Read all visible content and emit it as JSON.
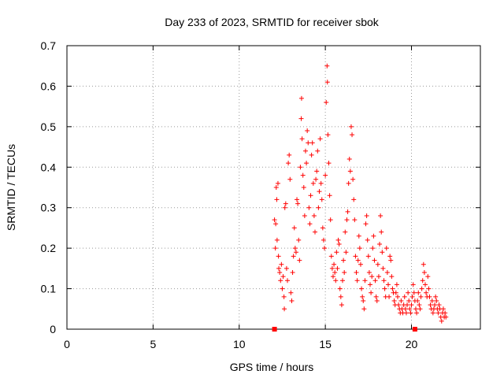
{
  "chart_data": {
    "type": "scatter",
    "title": "Day 233 of 2023, SRMTID for receiver sbok",
    "xlabel": "GPS time / hours",
    "ylabel": "SRMTID / TECUs",
    "xlim": [
      0,
      24
    ],
    "ylim": [
      0,
      0.7
    ],
    "xticks": [
      "0",
      "5",
      "10",
      "15",
      "20"
    ],
    "yticks": [
      "0",
      "0.1",
      "0.2",
      "0.3",
      "0.4",
      "0.5",
      "0.6",
      "0.7"
    ],
    "grid": true,
    "marker": "plus",
    "color": "#ff0000",
    "series": [
      {
        "name": "SRMTID",
        "points": [
          [
            12.05,
            0.27
          ],
          [
            12.1,
            0.2
          ],
          [
            12.12,
            0.26
          ],
          [
            12.15,
            0.35
          ],
          [
            12.18,
            0.32
          ],
          [
            12.2,
            0.22
          ],
          [
            12.25,
            0.36
          ],
          [
            12.28,
            0.18
          ],
          [
            12.3,
            0.15
          ],
          [
            12.35,
            0.14
          ],
          [
            12.4,
            0.12
          ],
          [
            12.45,
            0.16
          ],
          [
            12.5,
            0.1
          ],
          [
            12.55,
            0.13
          ],
          [
            12.6,
            0.08
          ],
          [
            12.62,
            0.05
          ],
          [
            12.65,
            0.3
          ],
          [
            12.7,
            0.31
          ],
          [
            12.75,
            0.15
          ],
          [
            12.8,
            0.12
          ],
          [
            12.85,
            0.41
          ],
          [
            12.9,
            0.43
          ],
          [
            12.95,
            0.37
          ],
          [
            13.0,
            0.09
          ],
          [
            13.05,
            0.07
          ],
          [
            13.1,
            0.14
          ],
          [
            13.15,
            0.18
          ],
          [
            13.2,
            0.25
          ],
          [
            13.25,
            0.2
          ],
          [
            13.3,
            0.19
          ],
          [
            13.35,
            0.32
          ],
          [
            13.4,
            0.31
          ],
          [
            13.45,
            0.22
          ],
          [
            13.5,
            0.17
          ],
          [
            13.55,
            0.4
          ],
          [
            13.6,
            0.52
          ],
          [
            13.62,
            0.57
          ],
          [
            13.65,
            0.47
          ],
          [
            13.7,
            0.38
          ],
          [
            13.75,
            0.35
          ],
          [
            13.8,
            0.28
          ],
          [
            13.85,
            0.44
          ],
          [
            13.9,
            0.41
          ],
          [
            13.95,
            0.49
          ],
          [
            14.0,
            0.46
          ],
          [
            14.05,
            0.3
          ],
          [
            14.1,
            0.26
          ],
          [
            14.15,
            0.33
          ],
          [
            14.2,
            0.43
          ],
          [
            14.25,
            0.46
          ],
          [
            14.3,
            0.36
          ],
          [
            14.35,
            0.28
          ],
          [
            14.4,
            0.24
          ],
          [
            14.45,
            0.37
          ],
          [
            14.5,
            0.39
          ],
          [
            14.55,
            0.44
          ],
          [
            14.6,
            0.3
          ],
          [
            14.65,
            0.34
          ],
          [
            14.7,
            0.47
          ],
          [
            14.75,
            0.36
          ],
          [
            14.8,
            0.32
          ],
          [
            14.85,
            0.25
          ],
          [
            14.9,
            0.22
          ],
          [
            14.95,
            0.2
          ],
          [
            15.0,
            0.38
          ],
          [
            15.05,
            0.56
          ],
          [
            15.1,
            0.65
          ],
          [
            15.12,
            0.61
          ],
          [
            15.15,
            0.48
          ],
          [
            15.2,
            0.41
          ],
          [
            15.25,
            0.33
          ],
          [
            15.3,
            0.27
          ],
          [
            15.35,
            0.18
          ],
          [
            15.4,
            0.15
          ],
          [
            15.45,
            0.13
          ],
          [
            15.5,
            0.16
          ],
          [
            15.55,
            0.14
          ],
          [
            15.6,
            0.12
          ],
          [
            15.65,
            0.19
          ],
          [
            15.7,
            0.15
          ],
          [
            15.75,
            0.22
          ],
          [
            15.8,
            0.21
          ],
          [
            15.85,
            0.1
          ],
          [
            15.9,
            0.08
          ],
          [
            15.95,
            0.06
          ],
          [
            16.0,
            0.12
          ],
          [
            16.05,
            0.17
          ],
          [
            16.1,
            0.14
          ],
          [
            16.15,
            0.24
          ],
          [
            16.2,
            0.19
          ],
          [
            16.25,
            0.27
          ],
          [
            16.3,
            0.29
          ],
          [
            16.35,
            0.36
          ],
          [
            16.4,
            0.42
          ],
          [
            16.45,
            0.39
          ],
          [
            16.5,
            0.5
          ],
          [
            16.55,
            0.48
          ],
          [
            16.6,
            0.37
          ],
          [
            16.65,
            0.32
          ],
          [
            16.7,
            0.27
          ],
          [
            16.75,
            0.18
          ],
          [
            16.8,
            0.14
          ],
          [
            16.85,
            0.12
          ],
          [
            16.9,
            0.17
          ],
          [
            16.95,
            0.23
          ],
          [
            17.0,
            0.2
          ],
          [
            17.05,
            0.16
          ],
          [
            17.1,
            0.1
          ],
          [
            17.15,
            0.08
          ],
          [
            17.2,
            0.07
          ],
          [
            17.25,
            0.05
          ],
          [
            17.3,
            0.12
          ],
          [
            17.35,
            0.26
          ],
          [
            17.4,
            0.28
          ],
          [
            17.45,
            0.22
          ],
          [
            17.5,
            0.18
          ],
          [
            17.55,
            0.14
          ],
          [
            17.6,
            0.11
          ],
          [
            17.65,
            0.09
          ],
          [
            17.7,
            0.13
          ],
          [
            17.75,
            0.2
          ],
          [
            17.8,
            0.23
          ],
          [
            17.85,
            0.17
          ],
          [
            17.9,
            0.12
          ],
          [
            17.95,
            0.08
          ],
          [
            18.0,
            0.07
          ],
          [
            18.05,
            0.16
          ],
          [
            18.1,
            0.13
          ],
          [
            18.15,
            0.21
          ],
          [
            18.2,
            0.28
          ],
          [
            18.25,
            0.24
          ],
          [
            18.3,
            0.19
          ],
          [
            18.35,
            0.15
          ],
          [
            18.4,
            0.12
          ],
          [
            18.45,
            0.1
          ],
          [
            18.5,
            0.08
          ],
          [
            18.55,
            0.2
          ],
          [
            18.6,
            0.14
          ],
          [
            18.65,
            0.11
          ],
          [
            18.7,
            0.08
          ],
          [
            18.75,
            0.18
          ],
          [
            18.8,
            0.17
          ],
          [
            18.85,
            0.13
          ],
          [
            18.9,
            0.1
          ],
          [
            18.95,
            0.09
          ],
          [
            19.0,
            0.07
          ],
          [
            19.05,
            0.06
          ],
          [
            19.1,
            0.09
          ],
          [
            19.15,
            0.11
          ],
          [
            19.2,
            0.08
          ],
          [
            19.25,
            0.06
          ],
          [
            19.3,
            0.05
          ],
          [
            19.35,
            0.04
          ],
          [
            19.4,
            0.07
          ],
          [
            19.45,
            0.05
          ],
          [
            19.5,
            0.04
          ],
          [
            19.55,
            0.06
          ],
          [
            19.6,
            0.08
          ],
          [
            19.65,
            0.05
          ],
          [
            19.7,
            0.04
          ],
          [
            19.75,
            0.06
          ],
          [
            19.8,
            0.09
          ],
          [
            19.85,
            0.07
          ],
          [
            19.9,
            0.05
          ],
          [
            19.95,
            0.04
          ],
          [
            20.0,
            0.06
          ],
          [
            20.05,
            0.08
          ],
          [
            20.1,
            0.11
          ],
          [
            20.15,
            0.09
          ],
          [
            20.2,
            0.07
          ],
          [
            20.25,
            0.05
          ],
          [
            20.3,
            0.04
          ],
          [
            20.35,
            0.07
          ],
          [
            20.4,
            0.09
          ],
          [
            20.45,
            0.06
          ],
          [
            20.5,
            0.05
          ],
          [
            20.55,
            0.08
          ],
          [
            20.6,
            0.1
          ],
          [
            20.65,
            0.12
          ],
          [
            20.7,
            0.16
          ],
          [
            20.75,
            0.14
          ],
          [
            20.8,
            0.11
          ],
          [
            20.85,
            0.09
          ],
          [
            20.9,
            0.08
          ],
          [
            20.95,
            0.13
          ],
          [
            21.0,
            0.1
          ],
          [
            21.05,
            0.08
          ],
          [
            21.1,
            0.06
          ],
          [
            21.15,
            0.05
          ],
          [
            21.2,
            0.07
          ],
          [
            21.25,
            0.04
          ],
          [
            21.3,
            0.05
          ],
          [
            21.35,
            0.06
          ],
          [
            21.4,
            0.08
          ],
          [
            21.45,
            0.07
          ],
          [
            21.5,
            0.05
          ],
          [
            21.55,
            0.04
          ],
          [
            21.6,
            0.06
          ],
          [
            21.65,
            0.05
          ],
          [
            21.7,
            0.03
          ],
          [
            21.75,
            0.02
          ],
          [
            21.8,
            0.04
          ],
          [
            21.85,
            0.05
          ],
          [
            21.9,
            0.03
          ],
          [
            21.95,
            0.04
          ],
          [
            22.0,
            0.03
          ]
        ]
      }
    ],
    "markers_zero": [
      12.05,
      20.2
    ]
  }
}
